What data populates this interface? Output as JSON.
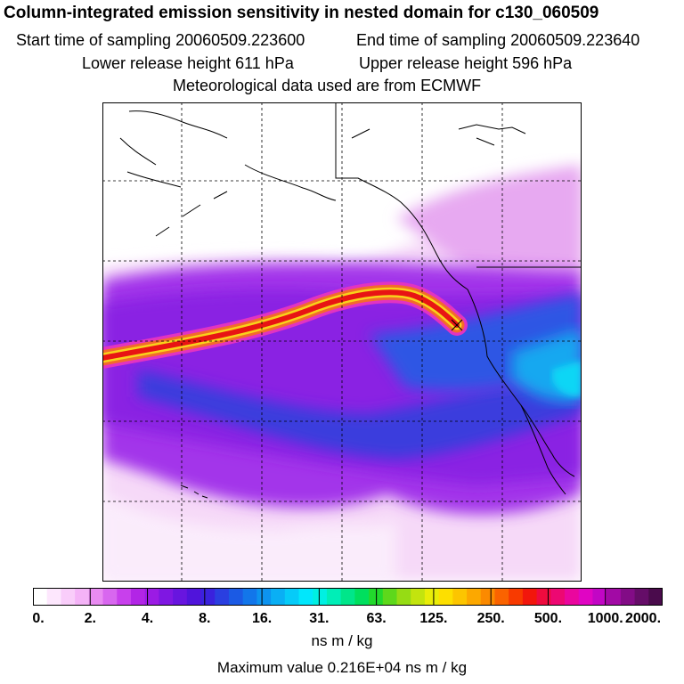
{
  "title": "Column-integrated emission sensitivity in nested domain for c130_060509",
  "header": {
    "start_time": "Start time of sampling 20060509.223600",
    "end_time": "End time of sampling 20060509.223640",
    "lower_release": "Lower release height  611 hPa",
    "upper_release": "Upper release height  596 hPa",
    "met_data": "Meteorological data used are from ECMWF"
  },
  "colorbar": {
    "ticks": [
      "0.",
      "2.",
      "4.",
      "8.",
      "16.",
      "31.",
      "63.",
      "125.",
      "250.",
      "500.",
      "1000.",
      "2000."
    ],
    "colors": [
      "#ffffff",
      "#fde7fd",
      "#f9cdfa",
      "#f4b3f7",
      "#e98bf2",
      "#d867ef",
      "#c840ec",
      "#b225e6",
      "#9b1be4",
      "#7f17e2",
      "#6815df",
      "#5014db",
      "#3a22dd",
      "#2a3fe0",
      "#1b5ae4",
      "#1276ea",
      "#0d93ef",
      "#0aaff4",
      "#06cbf8",
      "#01e7fc",
      "#00f0e2",
      "#00eeb7",
      "#00e68a",
      "#00df5e",
      "#22d92c",
      "#5ed81b",
      "#96dc14",
      "#c3e40e",
      "#e9ed08",
      "#fddf00",
      "#fcc500",
      "#fca800",
      "#fb8a00",
      "#fa6300",
      "#f83a00",
      "#f2160c",
      "#ef0b3e",
      "#ed0872",
      "#ea069e",
      "#e005c3",
      "#c206c5",
      "#a20aa5",
      "#820c86",
      "#650d68",
      "#4a0b4c"
    ],
    "units": "ns m / kg"
  },
  "max_value": "Maximum value  0.216E+04 ns m / kg"
}
